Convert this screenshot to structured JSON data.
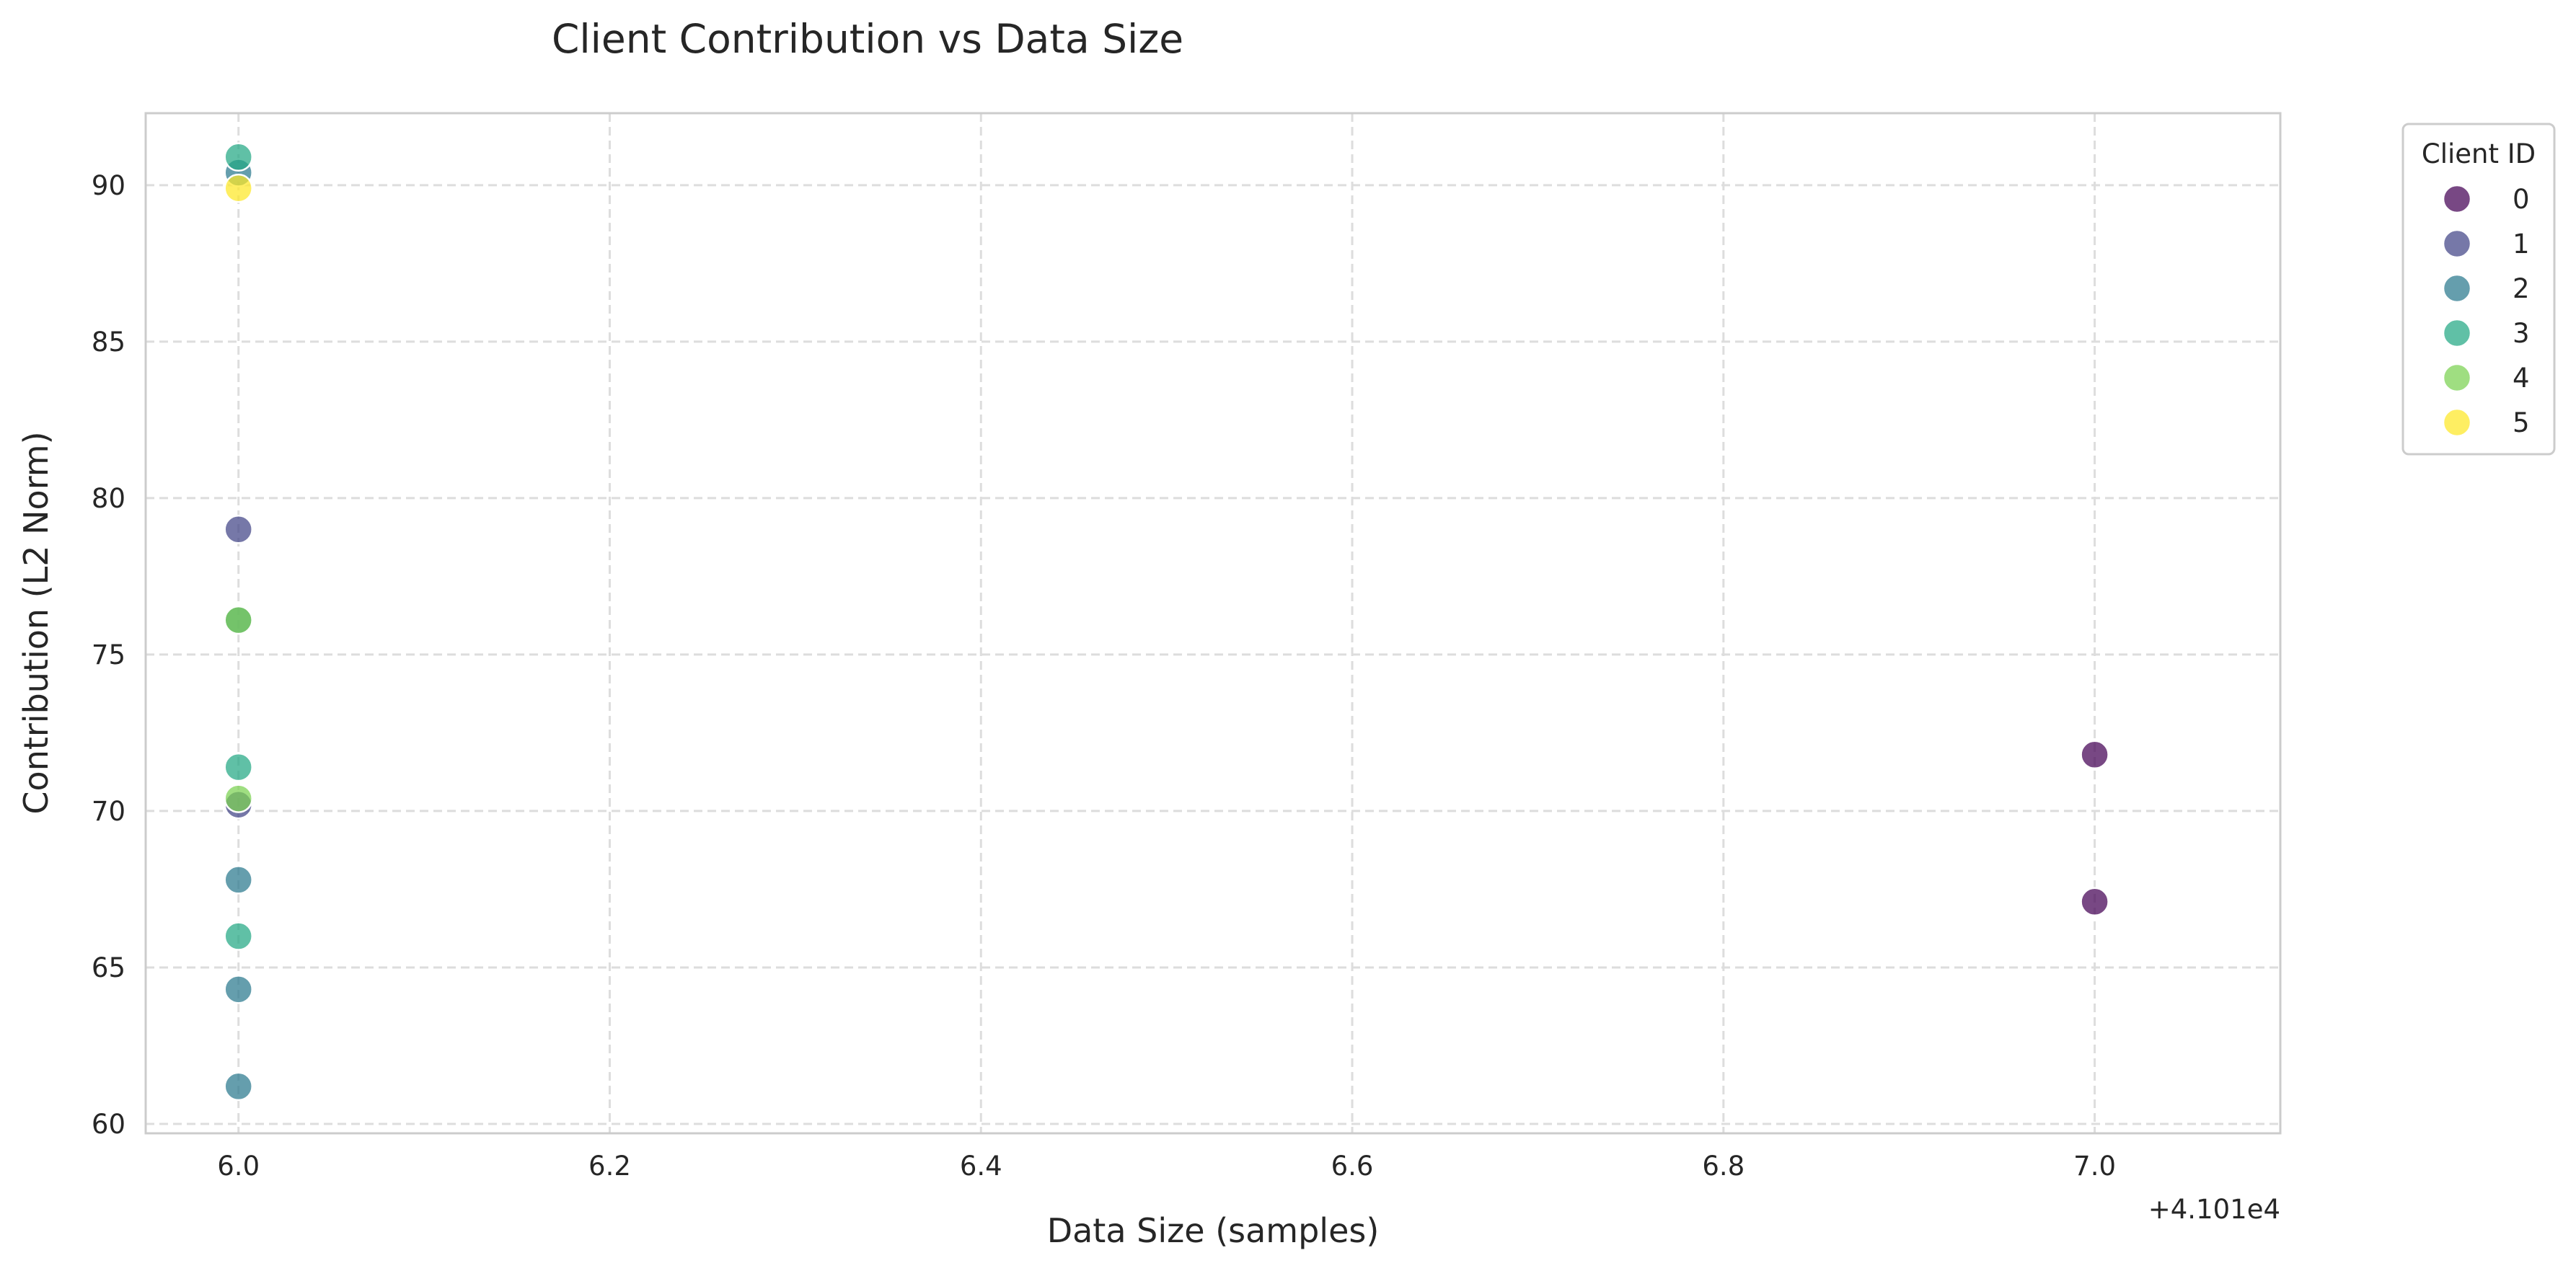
{
  "chart_data": {
    "type": "scatter",
    "title": "Client Contribution vs Data Size",
    "xlabel": "Data Size (samples)",
    "ylabel": "Contribution (L2 Norm)",
    "x_offset_label": "+4.101e4",
    "xlim": [
      5.95,
      7.1
    ],
    "ylim": [
      59.7,
      92.3
    ],
    "x_ticks": [
      6.0,
      6.2,
      6.4,
      6.6,
      6.8,
      7.0
    ],
    "x_tick_labels": [
      "6.0",
      "6.2",
      "6.4",
      "6.6",
      "6.8",
      "7.0"
    ],
    "y_ticks": [
      60,
      65,
      70,
      75,
      80,
      85,
      90
    ],
    "y_tick_labels": [
      "60",
      "65",
      "70",
      "75",
      "80",
      "85",
      "90"
    ],
    "grid": true,
    "legend": {
      "title": "Client ID",
      "placement": "outside-right",
      "entries": [
        "0",
        "1",
        "2",
        "3",
        "4",
        "5"
      ]
    },
    "colors": [
      "#440154",
      "#414487",
      "#2a788e",
      "#22a884",
      "#7ad151",
      "#fde725"
    ],
    "series": [
      {
        "name": "0",
        "x": [
          7.0,
          7.0
        ],
        "y": [
          71.8,
          67.1
        ]
      },
      {
        "name": "1",
        "x": [
          6.0,
          6.0
        ],
        "y": [
          79.0,
          70.2
        ]
      },
      {
        "name": "2",
        "x": [
          6.0,
          6.0,
          6.0,
          6.0,
          6.0
        ],
        "y": [
          90.4,
          76.1,
          67.8,
          64.3,
          61.2
        ]
      },
      {
        "name": "3",
        "x": [
          6.0,
          6.0,
          6.0
        ],
        "y": [
          90.9,
          71.4,
          66.0
        ]
      },
      {
        "name": "4",
        "x": [
          6.0,
          6.0
        ],
        "y": [
          76.1,
          70.4
        ]
      },
      {
        "name": "5",
        "x": [
          6.0
        ],
        "y": [
          89.9
        ]
      }
    ]
  }
}
